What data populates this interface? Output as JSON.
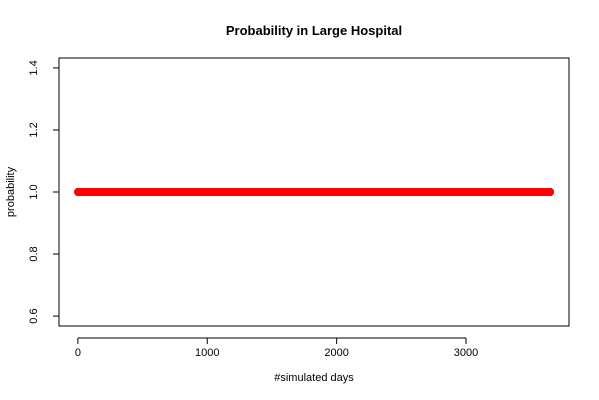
{
  "chart_data": {
    "type": "scatter",
    "title": "Probability in Large Hospital",
    "xlabel": "#simulated days",
    "ylabel": "probability",
    "x_ticks": [
      0,
      1000,
      2000,
      3000
    ],
    "x_tick_labels": [
      "0",
      "1000",
      "2000",
      "3000"
    ],
    "y_ticks": [
      0.6,
      0.8,
      1.0,
      1.2,
      1.4
    ],
    "y_tick_labels": [
      "0.6",
      "0.8",
      "1.0",
      "1.2",
      "1.4"
    ],
    "xlim": [
      -146,
      3796
    ],
    "ylim": [
      0.568,
      1.432
    ],
    "grid": false,
    "legend": "none",
    "series": [
      {
        "color": "#ff0000",
        "x_start": 1,
        "x_end": 3650,
        "x_step": 1,
        "y_constant": 1.0
      }
    ]
  }
}
